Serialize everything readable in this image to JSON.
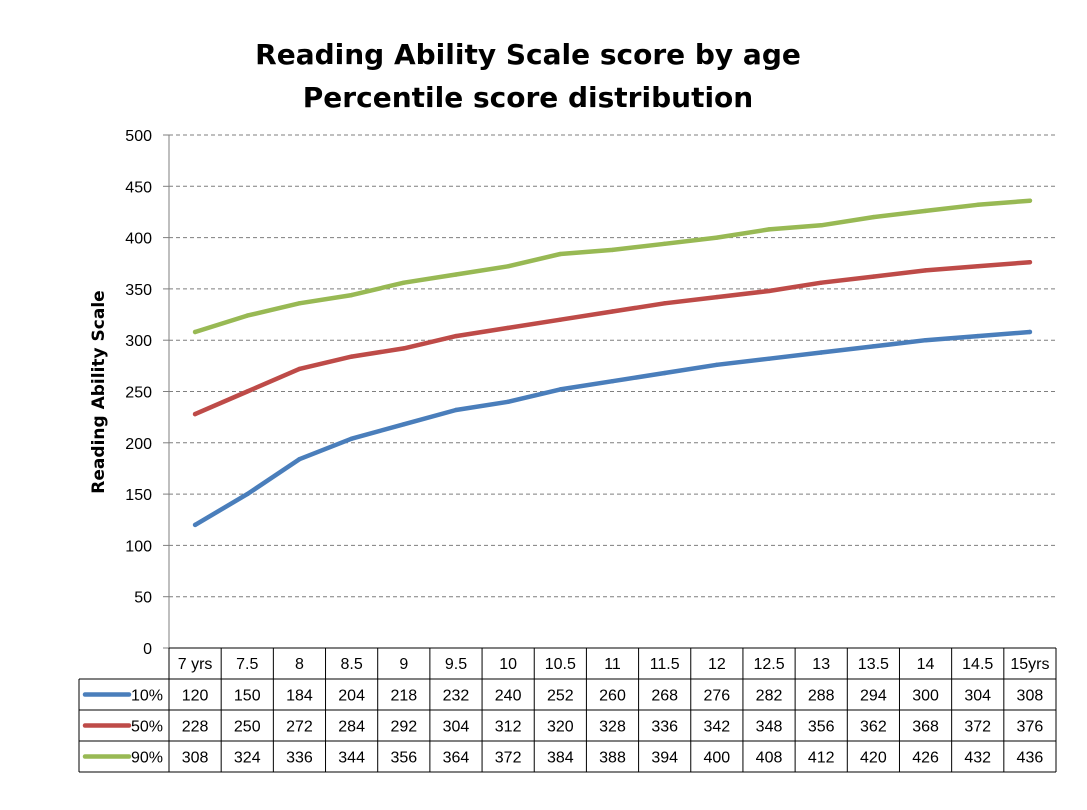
{
  "chart_data": {
    "type": "line",
    "title": "Reading Ability Scale score by age",
    "subtitle": "Percentile score distribution",
    "ylabel": "Reading Ability Scale",
    "xlabel": "",
    "ylim": [
      0,
      500
    ],
    "yticks": [
      0,
      50,
      100,
      150,
      200,
      250,
      300,
      350,
      400,
      450,
      500
    ],
    "grid": true,
    "legend_placement": "data-table",
    "categories": [
      "7 yrs",
      "7.5",
      "8",
      "8.5",
      "9",
      "9.5",
      "10",
      "10.5",
      "11",
      "11.5",
      "12",
      "12.5",
      "13",
      "13.5",
      "14",
      "14.5",
      "15yrs"
    ],
    "series": [
      {
        "name": "10%",
        "color": "#4a7ebb",
        "values": [
          120,
          150,
          184,
          204,
          218,
          232,
          240,
          252,
          260,
          268,
          276,
          282,
          288,
          294,
          300,
          304,
          308
        ]
      },
      {
        "name": "50%",
        "color": "#be4b48",
        "values": [
          228,
          250,
          272,
          284,
          292,
          304,
          312,
          320,
          328,
          336,
          342,
          348,
          356,
          362,
          368,
          372,
          376
        ]
      },
      {
        "name": "90%",
        "color": "#98b954",
        "values": [
          308,
          324,
          336,
          344,
          356,
          364,
          372,
          384,
          388,
          394,
          400,
          408,
          412,
          420,
          426,
          432,
          436
        ]
      }
    ]
  }
}
